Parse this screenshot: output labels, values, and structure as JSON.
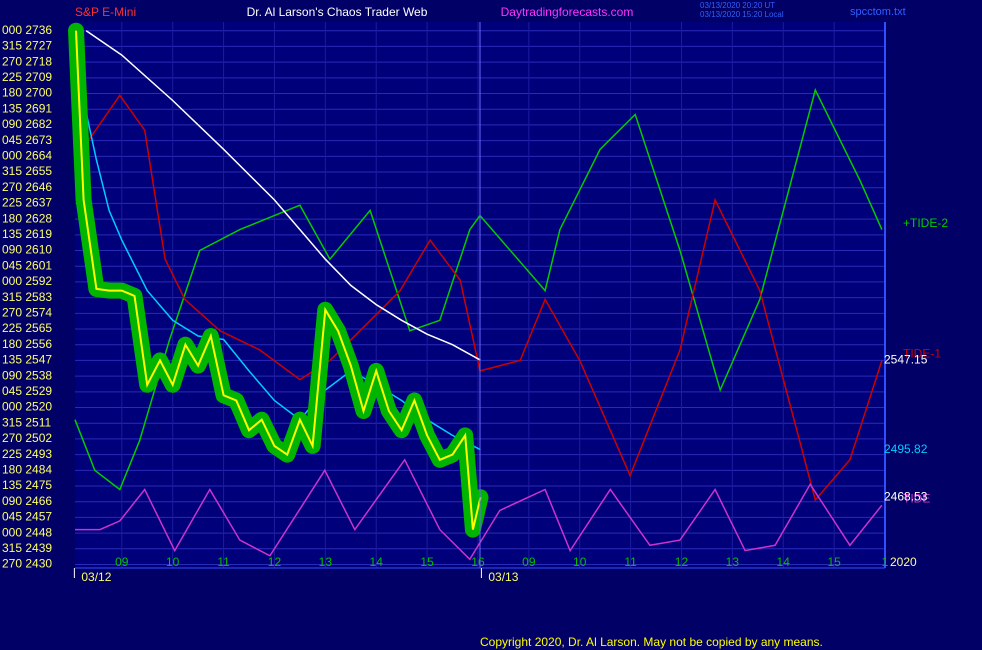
{
  "chart_data": {
    "type": "line",
    "instrument": "S&P E-Mini",
    "title": "Dr. Al Larson's Chaos Trader Web",
    "site": "Daytradingforecasts.com",
    "timestamps": [
      "03/13/2020 20:20 UT",
      "03/13/2020 15:20 Local"
    ],
    "file": "spcctom.txt",
    "copyright": "Copyright 2020, Dr. Al Larson. May not be copied by any means.",
    "year_label": "2020",
    "date_labels": [
      {
        "value": 8.5,
        "label": "03/12"
      },
      {
        "value": 16.5,
        "label": "03/13"
      }
    ],
    "xlim": [
      8.08,
      24.0
    ],
    "ylim": [
      2428,
      2741
    ],
    "grid": true,
    "xticks": [
      {
        "value": 9,
        "label": "09"
      },
      10,
      11,
      12,
      13,
      14,
      15,
      16,
      {
        "value": 17,
        "label": "09"
      },
      {
        "value": 18,
        "label": "10"
      },
      {
        "value": 19,
        "label": "11"
      },
      {
        "value": 20,
        "label": "12"
      },
      {
        "value": 21,
        "label": "13"
      },
      {
        "value": 22,
        "label": "14"
      },
      {
        "value": 23,
        "label": "15"
      },
      {
        "value": 24,
        "label": "1"
      }
    ],
    "yticks": [
      {
        "value": 2736,
        "label": "000 2736"
      },
      {
        "value": 2727,
        "label": "315 2727"
      },
      {
        "value": 2718,
        "label": "270 2718"
      },
      {
        "value": 2709,
        "label": "225 2709"
      },
      {
        "value": 2700,
        "label": "180 2700"
      },
      {
        "value": 2691,
        "label": "135 2691"
      },
      {
        "value": 2682,
        "label": "090 2682"
      },
      {
        "value": 2673,
        "label": "045 2673"
      },
      {
        "value": 2664,
        "label": "000 2664"
      },
      {
        "value": 2655,
        "label": "315 2655"
      },
      {
        "value": 2646,
        "label": "270 2646"
      },
      {
        "value": 2637,
        "label": "225 2637"
      },
      {
        "value": 2628,
        "label": "180 2628"
      },
      {
        "value": 2619,
        "label": "135 2619"
      },
      {
        "value": 2610,
        "label": "090 2610"
      },
      {
        "value": 2601,
        "label": "045 2601"
      },
      {
        "value": 2592,
        "label": "000 2592"
      },
      {
        "value": 2583,
        "label": "315 2583"
      },
      {
        "value": 2574,
        "label": "270 2574"
      },
      {
        "value": 2565,
        "label": "225 2565"
      },
      {
        "value": 2556,
        "label": "180 2556"
      },
      {
        "value": 2547,
        "label": "135 2547"
      },
      {
        "value": 2538,
        "label": "090 2538"
      },
      {
        "value": 2529,
        "label": "045 2529"
      },
      {
        "value": 2520,
        "label": "000 2520"
      },
      {
        "value": 2511,
        "label": "315 2511"
      },
      {
        "value": 2502,
        "label": "270 2502"
      },
      {
        "value": 2493,
        "label": "225 2493"
      },
      {
        "value": 2484,
        "label": "180 2484"
      },
      {
        "value": 2475,
        "label": "135 2475"
      },
      {
        "value": 2466,
        "label": "090 2466"
      },
      {
        "value": 2457,
        "label": "045 2457"
      },
      {
        "value": 2448,
        "label": "000 2448"
      },
      {
        "value": 2439,
        "label": "315 2439"
      },
      {
        "value": 2430,
        "label": "270 2430"
      }
    ],
    "series": [
      {
        "name": "+TIDE-2",
        "color": "#00cc00",
        "x": [
          8.08,
          8.47,
          8.96,
          9.35,
          9.94,
          10.53,
          11.32,
          12.5,
          13.09,
          13.88,
          14.66,
          15.25,
          15.84,
          16.04,
          17.32,
          17.61,
          18.4,
          19.09,
          19.97,
          20.76,
          21.54,
          22.63,
          23.51,
          23.94
        ],
        "values": [
          2513,
          2484,
          2473,
          2501,
          2559,
          2610,
          2622,
          2636,
          2605,
          2633,
          2564,
          2570,
          2622,
          2630,
          2587,
          2622,
          2668,
          2688,
          2610,
          2530,
          2582,
          2702,
          2650,
          2622
        ]
      },
      {
        "name": "TIDE-1",
        "color": "#cc0000",
        "x": [
          8.08,
          8.96,
          9.45,
          9.85,
          10.24,
          10.93,
          11.71,
          12.5,
          13.09,
          13.68,
          14.47,
          15.06,
          15.65,
          16.04,
          16.83,
          17.32,
          18.0,
          18.99,
          19.97,
          20.66,
          21.54,
          22.63,
          23.31,
          23.94
        ],
        "values": [
          2662,
          2699,
          2679,
          2605,
          2582,
          2564,
          2553,
          2536,
          2547,
          2564,
          2587,
          2616,
          2593,
          2541,
          2547,
          2582,
          2547,
          2481,
          2553,
          2639,
          2587,
          2467,
          2490,
          2547
        ]
      },
      {
        "name": "TIDE",
        "color": "#cc33cc",
        "x": [
          8.08,
          8.57,
          8.96,
          9.45,
          10.04,
          10.73,
          11.32,
          11.91,
          12.99,
          13.58,
          14.56,
          15.25,
          15.84,
          16.43,
          17.32,
          17.81,
          18.6,
          19.38,
          19.97,
          20.66,
          21.25,
          21.84,
          22.53,
          23.31,
          23.94
        ],
        "values": [
          2450,
          2450,
          2455,
          2473,
          2438,
          2473,
          2444,
          2435,
          2484,
          2450,
          2490,
          2450,
          2433,
          2461,
          2473,
          2438,
          2473,
          2441,
          2444,
          2473,
          2438,
          2441,
          2476,
          2441,
          2464
        ]
      },
      {
        "color": "#ffffff",
        "label_last": true,
        "x": [
          8.3,
          9,
          10,
          11,
          12,
          13,
          13.5,
          14,
          14.5,
          15,
          15.5,
          16.05
        ],
        "values": [
          2736,
          2722,
          2696,
          2668,
          2639,
          2605,
          2590,
          2579,
          2570,
          2562,
          2556,
          2547.15
        ]
      },
      {
        "color": "#00ccff",
        "label_last": true,
        "x": [
          8.1,
          8.25,
          8.5,
          8.75,
          9,
          9.5,
          10,
          10.5,
          11,
          11.5,
          12,
          12.5,
          13,
          13.5,
          14,
          14.5,
          15,
          15.5,
          16.05
        ],
        "values": [
          2736,
          2696,
          2662,
          2633,
          2616,
          2587,
          2570,
          2561,
          2559,
          2541,
          2524,
          2513,
          2530,
          2541,
          2533,
          2524,
          2513,
          2504,
          2495.82
        ]
      },
      {
        "color": "#ffff00",
        "halo": "#00b400",
        "label_last": true,
        "x": [
          8.1,
          8.25,
          8.5,
          8.75,
          9,
          9.25,
          9.5,
          9.75,
          10,
          10.25,
          10.5,
          10.75,
          11,
          11.25,
          11.5,
          11.75,
          12,
          12.25,
          12.5,
          12.75,
          13,
          13.25,
          13.5,
          13.75,
          14,
          14.25,
          14.5,
          14.75,
          15,
          15.25,
          15.5,
          15.75,
          15.9,
          16.05
        ],
        "values": [
          2736,
          2639,
          2588,
          2587,
          2587,
          2584,
          2533,
          2547,
          2533,
          2556,
          2544,
          2561,
          2527,
          2524,
          2507,
          2513,
          2498,
          2493,
          2513,
          2498,
          2576,
          2564,
          2544,
          2518,
          2541,
          2518,
          2507,
          2524,
          2504,
          2490,
          2493,
          2504,
          2450,
          2468.53
        ]
      }
    ]
  }
}
